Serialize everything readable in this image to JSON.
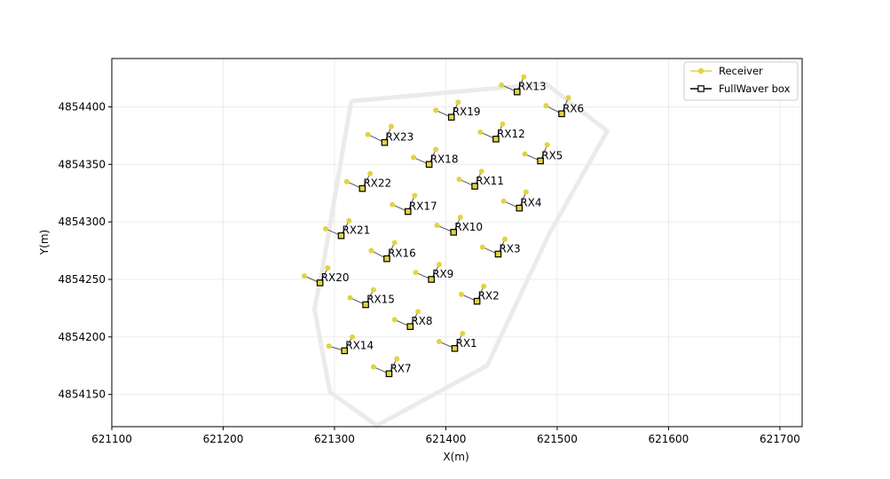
{
  "chart_data": {
    "type": "scatter",
    "title": "",
    "xlabel": "X(m)",
    "ylabel": "Y(m)",
    "xlim": [
      621100,
      621720
    ],
    "ylim": [
      4854122,
      4854442
    ],
    "xticks": [
      621100,
      621200,
      621300,
      621400,
      621500,
      621600,
      621700
    ],
    "yticks": [
      4854150,
      4854200,
      4854250,
      4854300,
      4854350,
      4854400
    ],
    "xtick_labels": [
      "621100",
      "621200",
      "621300",
      "621400",
      "621500",
      "621600",
      "621700"
    ],
    "ytick_labels": [
      "4854150",
      "4854200",
      "4854250",
      "4854300",
      "4854350",
      "4854400"
    ],
    "grid": true,
    "legend_position": "top-right",
    "legend": [
      {
        "label": "Receiver",
        "color": "#e0d440",
        "marker": "circle"
      },
      {
        "label": "FullWaver box",
        "color": "#000000",
        "marker": "square"
      }
    ],
    "colors": {
      "receiver": "#e0d440",
      "box_fill": "#e0d440",
      "box_edge": "#000000",
      "connector": "#555555",
      "outline": "#ebebeb",
      "grid": "#ebebeb"
    },
    "outline": {
      "x": [
        621315,
        621490,
        621545,
        621493,
        621437,
        621338,
        621296,
        621282,
        621290,
        621315
      ],
      "y": [
        4854405,
        4854420,
        4854379,
        4854290,
        4854175,
        4854123,
        4854152,
        4854224,
        4854263,
        4854405
      ]
    },
    "receivers": [
      {
        "name": "RX1",
        "box": [
          621408,
          4854190
        ],
        "pts": [
          [
            621394,
            4854196
          ],
          [
            621415,
            4854203
          ]
        ]
      },
      {
        "name": "RX2",
        "box": [
          621428,
          4854231
        ],
        "pts": [
          [
            621414,
            4854237
          ],
          [
            621434,
            4854244
          ]
        ]
      },
      {
        "name": "RX3",
        "box": [
          621447,
          4854272
        ],
        "pts": [
          [
            621433,
            4854278
          ],
          [
            621453,
            4854285
          ]
        ]
      },
      {
        "name": "RX4",
        "box": [
          621466,
          4854312
        ],
        "pts": [
          [
            621452,
            4854318
          ],
          [
            621472,
            4854326
          ]
        ]
      },
      {
        "name": "RX5",
        "box": [
          621485,
          4854353
        ],
        "pts": [
          [
            621471,
            4854359
          ],
          [
            621491,
            4854367
          ]
        ]
      },
      {
        "name": "RX6",
        "box": [
          621504,
          4854394
        ],
        "pts": [
          [
            621490,
            4854401
          ],
          [
            621510,
            4854408
          ]
        ]
      },
      {
        "name": "RX7",
        "box": [
          621349,
          4854168
        ],
        "pts": [
          [
            621335,
            4854174
          ],
          [
            621356,
            4854181
          ]
        ]
      },
      {
        "name": "RX8",
        "box": [
          621368,
          4854209
        ],
        "pts": [
          [
            621354,
            4854215
          ],
          [
            621375,
            4854222
          ]
        ]
      },
      {
        "name": "RX9",
        "box": [
          621387,
          4854250
        ],
        "pts": [
          [
            621373,
            4854256
          ],
          [
            621394,
            4854263
          ]
        ]
      },
      {
        "name": "RX10",
        "box": [
          621407,
          4854291
        ],
        "pts": [
          [
            621392,
            4854297
          ],
          [
            621413,
            4854304
          ]
        ]
      },
      {
        "name": "RX11",
        "box": [
          621426,
          4854331
        ],
        "pts": [
          [
            621412,
            4854337
          ],
          [
            621432,
            4854344
          ]
        ]
      },
      {
        "name": "RX12",
        "box": [
          621445,
          4854372
        ],
        "pts": [
          [
            621431,
            4854378
          ],
          [
            621451,
            4854385
          ]
        ]
      },
      {
        "name": "RX13",
        "box": [
          621464,
          4854413
        ],
        "pts": [
          [
            621450,
            4854419
          ],
          [
            621470,
            4854426
          ]
        ]
      },
      {
        "name": "RX14",
        "box": [
          621309,
          4854188
        ],
        "pts": [
          [
            621295,
            4854192
          ],
          [
            621316,
            4854200
          ]
        ]
      },
      {
        "name": "RX15",
        "box": [
          621328,
          4854228
        ],
        "pts": [
          [
            621314,
            4854234
          ],
          [
            621335,
            4854241
          ]
        ]
      },
      {
        "name": "RX16",
        "box": [
          621347,
          4854268
        ],
        "pts": [
          [
            621333,
            4854275
          ],
          [
            621354,
            4854282
          ]
        ]
      },
      {
        "name": "RX17",
        "box": [
          621366,
          4854309
        ],
        "pts": [
          [
            621352,
            4854315
          ],
          [
            621372,
            4854323
          ]
        ]
      },
      {
        "name": "RX18",
        "box": [
          621385,
          4854350
        ],
        "pts": [
          [
            621371,
            4854356
          ],
          [
            621391,
            4854363
          ]
        ]
      },
      {
        "name": "RX19",
        "box": [
          621405,
          4854391
        ],
        "pts": [
          [
            621391,
            4854397
          ],
          [
            621411,
            4854404
          ]
        ]
      },
      {
        "name": "RX20",
        "box": [
          621287,
          4854247
        ],
        "pts": [
          [
            621273,
            4854253
          ],
          [
            621294,
            4854260
          ]
        ]
      },
      {
        "name": "RX21",
        "box": [
          621306,
          4854288
        ],
        "pts": [
          [
            621292,
            4854294
          ],
          [
            621313,
            4854301
          ]
        ]
      },
      {
        "name": "RX22",
        "box": [
          621325,
          4854329
        ],
        "pts": [
          [
            621311,
            4854335
          ],
          [
            621332,
            4854342
          ]
        ]
      },
      {
        "name": "RX23",
        "box": [
          621345,
          4854369
        ],
        "pts": [
          [
            621330,
            4854376
          ],
          [
            621351,
            4854383
          ]
        ]
      }
    ]
  }
}
